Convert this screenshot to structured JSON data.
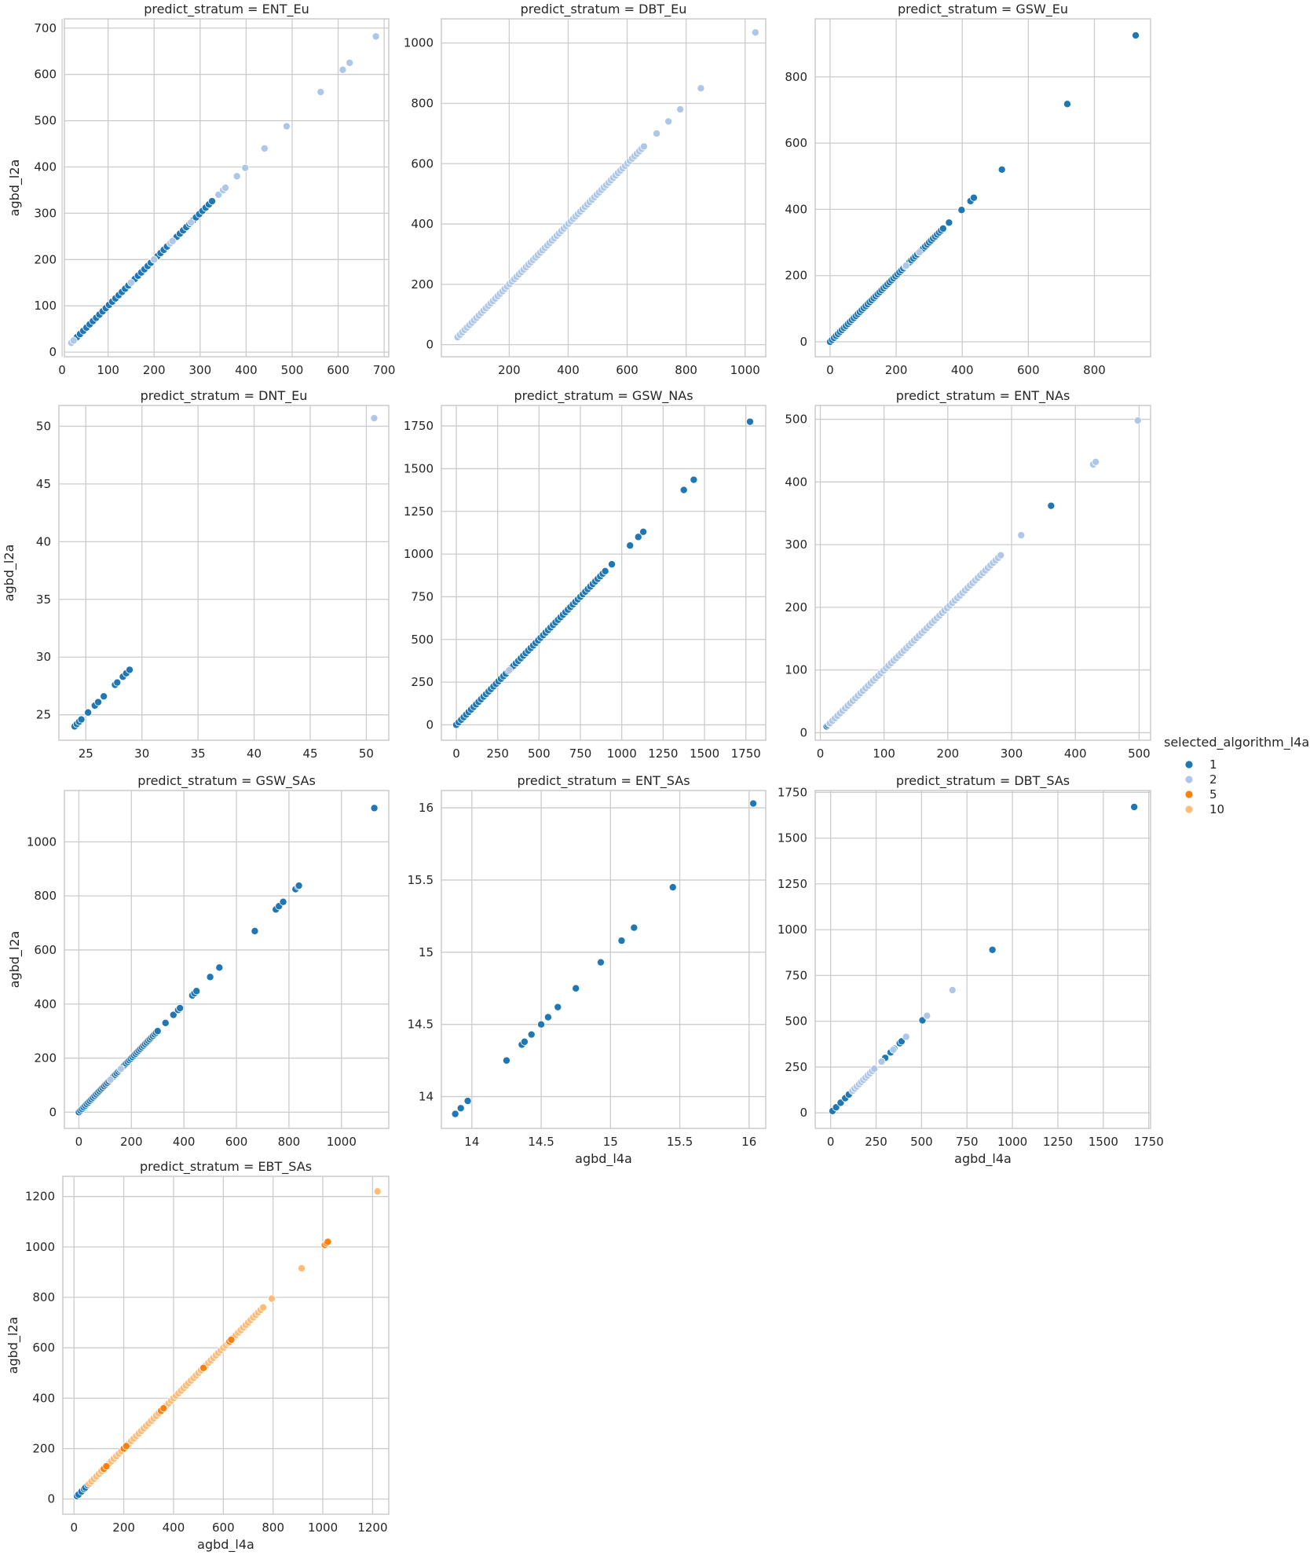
{
  "legend": {
    "title": "selected_algorithm_l4a",
    "entries": [
      {
        "label": "1",
        "color": "#1f77b4"
      },
      {
        "label": "2",
        "color": "#aec7e8"
      },
      {
        "label": "5",
        "color": "#ff7f0e"
      },
      {
        "label": "10",
        "color": "#ffbb78"
      }
    ]
  },
  "chart_data": [
    {
      "type": "scatter",
      "title": "predict_stratum = ENT_Eu",
      "xlabel": "",
      "ylabel": "agbd_l2a",
      "xlim": [
        5,
        710
      ],
      "ylim": [
        -10,
        720
      ],
      "xticks": [
        0,
        100,
        200,
        300,
        400,
        500,
        600,
        700
      ],
      "yticks": [
        0,
        100,
        200,
        300,
        400,
        500,
        600,
        700
      ],
      "grid": true,
      "series": [
        {
          "name": "1",
          "gen": [
            {
              "from": 25,
              "to": 330,
              "step": 7
            }
          ]
        },
        {
          "name": "2",
          "points": [
            20,
            25,
            150,
            200,
            235,
            240,
            280,
            340,
            350,
            355,
            380,
            398,
            440,
            488,
            562,
            610,
            625,
            682
          ]
        }
      ]
    },
    {
      "type": "scatter",
      "title": "predict_stratum = DBT_Eu",
      "xlabel": "",
      "ylabel": "",
      "xlim": [
        -30,
        1070
      ],
      "ylim": [
        -40,
        1080
      ],
      "xticks": [
        200,
        400,
        600,
        800,
        1000
      ],
      "yticks": [
        0,
        200,
        400,
        600,
        800,
        1000
      ],
      "grid": true,
      "series": [
        {
          "name": "1",
          "points": [
            25,
            40,
            55,
            80,
            110,
            170,
            230,
            260,
            290,
            320,
            335
          ]
        },
        {
          "name": "2",
          "gen": [
            {
              "from": 25,
              "to": 660,
              "step": 8
            }
          ],
          "points": [
            700,
            740,
            780,
            850,
            1035
          ]
        }
      ]
    },
    {
      "type": "scatter",
      "title": "predict_stratum = GSW_Eu",
      "xlabel": "",
      "ylabel": "",
      "xlim": [
        -45,
        970
      ],
      "ylim": [
        -45,
        975
      ],
      "xticks": [
        0,
        200,
        400,
        600,
        800
      ],
      "yticks": [
        0,
        200,
        400,
        600,
        800
      ],
      "grid": true,
      "series": [
        {
          "name": "1",
          "gen": [
            {
              "from": 0,
              "to": 345,
              "step": 6
            }
          ],
          "points": [
            360,
            398,
            425,
            435,
            520,
            718,
            925
          ]
        },
        {
          "name": "2",
          "points": [
            230,
            270
          ]
        }
      ]
    },
    {
      "type": "scatter",
      "title": "predict_stratum = DNT_Eu",
      "xlabel": "",
      "ylabel": "agbd_l2a",
      "xlim": [
        22.6,
        52
      ],
      "ylim": [
        22.8,
        51.8
      ],
      "xticks": [
        25,
        30,
        35,
        40,
        45,
        50
      ],
      "yticks": [
        25,
        30,
        35,
        40,
        45,
        50
      ],
      "grid": true,
      "series": [
        {
          "name": "1",
          "points": [
            24.0,
            24.2,
            24.4,
            24.6,
            25.2,
            25.8,
            26.1,
            26.6,
            27.6,
            27.8,
            28.3,
            28.6,
            28.9
          ]
        },
        {
          "name": "2",
          "points": [
            50.7
          ]
        }
      ]
    },
    {
      "type": "scatter",
      "title": "predict_stratum = GSW_NAs",
      "xlabel": "",
      "ylabel": "",
      "xlim": [
        -90,
        1870
      ],
      "ylim": [
        -90,
        1870
      ],
      "xticks": [
        0,
        250,
        500,
        750,
        1000,
        1250,
        1500,
        1750
      ],
      "yticks": [
        0,
        250,
        500,
        750,
        1000,
        1250,
        1500,
        1750
      ],
      "grid": true,
      "series": [
        {
          "name": "1",
          "gen": [
            {
              "from": 0,
              "to": 900,
              "step": 15
            }
          ],
          "points": [
            940,
            1050,
            1100,
            1130,
            1375,
            1435,
            1775
          ]
        },
        {
          "name": "2",
          "points": [
            320
          ]
        }
      ]
    },
    {
      "type": "scatter",
      "title": "predict_stratum = ENT_NAs",
      "xlabel": "",
      "ylabel": "",
      "xlim": [
        -8,
        518
      ],
      "ylim": [
        -12,
        522
      ],
      "xticks": [
        0,
        100,
        200,
        300,
        400,
        500
      ],
      "yticks": [
        0,
        100,
        200,
        300,
        400,
        500
      ],
      "grid": true,
      "series": [
        {
          "name": "1",
          "points": [
            10,
            12,
            14,
            180,
            362
          ]
        },
        {
          "name": "2",
          "gen": [
            {
              "from": 15,
              "to": 285,
              "step": 4
            }
          ],
          "points": [
            315,
            428,
            432,
            498
          ]
        }
      ]
    },
    {
      "type": "scatter",
      "title": "predict_stratum = GSW_SAs",
      "xlabel": "",
      "ylabel": "agbd_l2a",
      "xlim": [
        -55,
        1180
      ],
      "ylim": [
        -60,
        1190
      ],
      "xticks": [
        0,
        200,
        400,
        600,
        800,
        1000
      ],
      "yticks": [
        0,
        200,
        400,
        600,
        800,
        1000
      ],
      "grid": true,
      "series": [
        {
          "name": "1",
          "gen": [
            {
              "from": 0,
              "to": 300,
              "step": 6
            }
          ],
          "points": [
            330,
            360,
            378,
            385,
            432,
            440,
            448,
            500,
            535,
            670,
            750,
            762,
            778,
            825,
            835,
            838,
            1125
          ]
        },
        {
          "name": "2",
          "points": [
            120,
            160
          ]
        }
      ]
    },
    {
      "type": "scatter",
      "title": "predict_stratum = ENT_SAs",
      "xlabel": "agbd_l4a",
      "ylabel": "",
      "xlim": [
        13.78,
        16.12
      ],
      "ylim": [
        13.78,
        16.12
      ],
      "xticks": [
        14.0,
        14.5,
        15.0,
        15.5,
        16.0
      ],
      "yticks": [
        14.0,
        14.5,
        15.0,
        15.5,
        16.0
      ],
      "grid": true,
      "series": [
        {
          "name": "1",
          "points": [
            13.88,
            13.92,
            13.97,
            14.25,
            14.36,
            14.38,
            14.43,
            14.5,
            14.55,
            14.62,
            14.75,
            14.93,
            15.08,
            15.17,
            15.45,
            16.03
          ]
        }
      ]
    },
    {
      "type": "scatter",
      "title": "predict_stratum = DBT_SAs",
      "xlabel": "agbd_l4a",
      "ylabel": "",
      "xlim": [
        -85,
        1760
      ],
      "ylim": [
        -85,
        1760
      ],
      "xticks": [
        0,
        250,
        500,
        750,
        1000,
        1250,
        1500,
        1750
      ],
      "yticks": [
        0,
        250,
        500,
        750,
        1000,
        1250,
        1500,
        1750
      ],
      "grid": true,
      "series": [
        {
          "name": "1",
          "points": [
            10,
            30,
            55,
            80,
            100,
            175,
            190,
            240,
            300,
            330,
            350,
            380,
            390,
            505,
            890,
            1670
          ]
        },
        {
          "name": "2",
          "gen": [
            {
              "from": 120,
              "to": 240,
              "step": 12
            }
          ],
          "points": [
            280,
            345,
            415,
            530,
            670
          ]
        }
      ]
    },
    {
      "type": "scatter",
      "title": "predict_stratum = EBT_SAs",
      "xlabel": "agbd_l4a",
      "ylabel": "agbd_l2a",
      "xlim": [
        -45,
        1265
      ],
      "ylim": [
        -60,
        1280
      ],
      "xticks": [
        0,
        200,
        400,
        600,
        800,
        1000,
        1200
      ],
      "yticks": [
        0,
        200,
        400,
        600,
        800,
        1000,
        1200
      ],
      "grid": true,
      "series": [
        {
          "name": "1",
          "points": [
            12,
            18,
            30,
            40,
            45,
            55,
            100,
            110,
            170,
            440
          ]
        },
        {
          "name": "10",
          "gen": [
            {
              "from": 60,
              "to": 760,
              "step": 10
            }
          ],
          "points": [
            795,
            915,
            1220
          ]
        },
        {
          "name": "5",
          "points": [
            120,
            130,
            200,
            210,
            350,
            360,
            520,
            625,
            632,
            1008,
            1015,
            1020
          ]
        }
      ]
    }
  ]
}
